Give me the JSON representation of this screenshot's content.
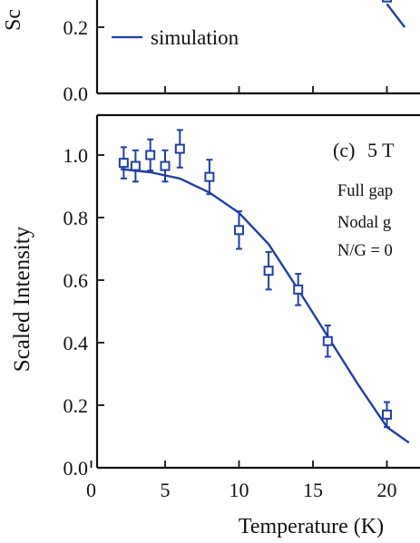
{
  "chart_data": [
    {
      "panel": "top (partially visible)",
      "type": "line",
      "ylim": [
        0.0,
        null
      ],
      "yticks": [
        "0.0",
        "0.2"
      ],
      "ylabel_fragment": "Sc",
      "legend": {
        "entry": "simulation",
        "placement": "top-left"
      },
      "series": [
        {
          "name": "simulation",
          "kind": "line",
          "x": [
            20,
            21.2
          ],
          "y": [
            0.27,
            0.2
          ]
        },
        {
          "name": "data",
          "kind": "markers",
          "x": [
            20
          ],
          "y": [
            0.29
          ]
        }
      ]
    },
    {
      "panel": "(c)",
      "type": "scatter",
      "panel_label": "(c)",
      "field_label": "5 T",
      "annotation_lines": [
        "Full gap",
        "Nodal g",
        "N/G = 0"
      ],
      "xlabel": "Temperature (K)",
      "ylabel": "Scaled Intensity",
      "xlim": [
        0,
        21.5
      ],
      "ylim": [
        0.0,
        1.1
      ],
      "xticks": [
        "0",
        "5",
        "10",
        "15",
        "20"
      ],
      "yticks": [
        "0.0",
        "0.2",
        "0.4",
        "0.6",
        "0.8",
        "1.0"
      ],
      "series": [
        {
          "name": "data",
          "kind": "markers_with_errorbars",
          "color": "#1f3fa3",
          "x": [
            2.2,
            3.0,
            4.0,
            5.0,
            6.0,
            8.0,
            10.0,
            12.0,
            14.0,
            16.0,
            20.0
          ],
          "y": [
            0.975,
            0.965,
            1.0,
            0.965,
            1.02,
            0.93,
            0.76,
            0.63,
            0.57,
            0.405,
            0.17
          ],
          "err": [
            0.05,
            0.05,
            0.05,
            0.05,
            0.06,
            0.055,
            0.06,
            0.06,
            0.05,
            0.05,
            0.04
          ]
        },
        {
          "name": "simulation",
          "kind": "line",
          "color": "#1f3fa3",
          "x": [
            2,
            4,
            6,
            8,
            10,
            12,
            14,
            16,
            18,
            20,
            21.5
          ],
          "y": [
            0.955,
            0.945,
            0.925,
            0.88,
            0.815,
            0.715,
            0.57,
            0.42,
            0.27,
            0.13,
            0.08
          ]
        }
      ]
    }
  ]
}
